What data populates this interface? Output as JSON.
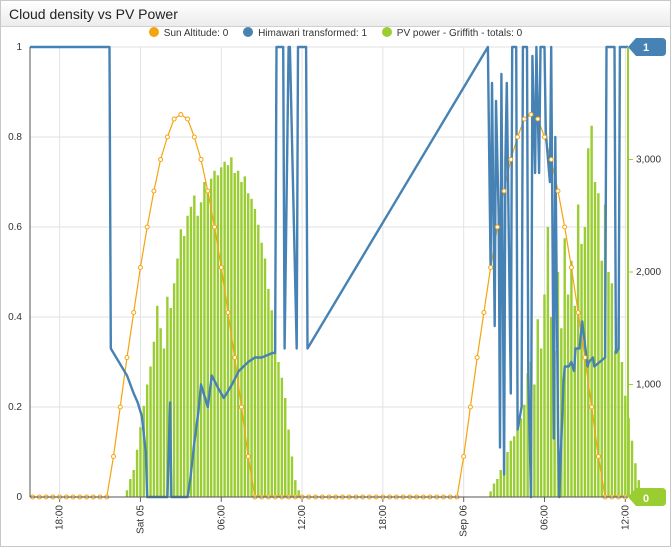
{
  "widget": {
    "title": "Cloud density vs PV Power"
  },
  "legend": [
    {
      "label": "Sun Altitude: 0",
      "color": "#f5a40f"
    },
    {
      "label": "Himawari transformed: 1",
      "color": "#4682b4"
    },
    {
      "label": "PV power - Griffith - totals: 0",
      "color": "#9acd32"
    }
  ],
  "badges": {
    "left_value": "1",
    "right_value": "0",
    "left_color": "#4682b4",
    "right_color": "#9acd32"
  },
  "chart_data": {
    "type": "line",
    "x_ticks": [
      "18:00",
      "Sat 05",
      "06:00",
      "12:00",
      "18:00",
      "Sep 06",
      "06:00",
      "12:00"
    ],
    "x_tick_hours": [
      -6,
      0,
      6,
      12,
      18,
      24,
      30,
      36
    ],
    "xlim_hours": [
      -8.2,
      36.2
    ],
    "y_left": {
      "ylim": [
        0,
        1
      ],
      "ticks": [
        "0",
        "0.2",
        "0.4",
        "0.6",
        "0.8",
        "1"
      ]
    },
    "y_right": {
      "ylim": [
        0,
        4000
      ],
      "ticks": [
        "1,000",
        "2,000",
        "3,000"
      ]
    },
    "grid": true,
    "legend_position": "top",
    "series": [
      {
        "name": "Sun Altitude",
        "type": "line-markers",
        "color": "#f5a40f",
        "axis": "left",
        "x": [
          -8.0,
          -7.5,
          -7.0,
          -6.5,
          -6.0,
          -5.5,
          -5.0,
          -4.5,
          -4.0,
          -3.5,
          -3.0,
          -2.5,
          -2.0,
          -1.5,
          -1.0,
          -0.5,
          0.0,
          0.5,
          1.0,
          1.5,
          2.0,
          2.5,
          3.0,
          3.5,
          4.0,
          4.5,
          5.0,
          5.5,
          6.0,
          6.5,
          7.0,
          7.5,
          8.0,
          8.5,
          9.0,
          9.5,
          10.0,
          10.5,
          11.0,
          11.5,
          12.0,
          12.5,
          13.0,
          13.5,
          14.0,
          14.5,
          15.0,
          15.5,
          16.0,
          16.5,
          17.0,
          17.5,
          18.0,
          18.5,
          19.0,
          19.5,
          20.0,
          20.5,
          21.0,
          21.5,
          22.0,
          22.5,
          23.0,
          23.5,
          24.0,
          24.5,
          25.0,
          25.5,
          26.0,
          26.5,
          27.0,
          27.5,
          28.0,
          28.5,
          29.0,
          29.5,
          30.0,
          30.5,
          31.0,
          31.5,
          32.0,
          32.5,
          33.0,
          33.5,
          34.0,
          34.5,
          35.0,
          35.5,
          36.0
        ],
        "values": [
          0,
          0,
          0,
          0,
          0,
          0,
          0,
          0,
          0,
          0,
          0,
          0,
          0.09,
          0.2,
          0.31,
          0.41,
          0.51,
          0.6,
          0.68,
          0.75,
          0.8,
          0.84,
          0.85,
          0.84,
          0.8,
          0.75,
          0.68,
          0.6,
          0.51,
          0.41,
          0.31,
          0.2,
          0.09,
          0,
          0,
          0,
          0,
          0,
          0,
          0,
          0,
          0,
          0,
          0,
          0,
          0,
          0,
          0,
          0,
          0,
          0,
          0,
          0,
          0,
          0,
          0,
          0,
          0,
          0,
          0,
          0,
          0,
          0,
          0,
          0.09,
          0.2,
          0.31,
          0.41,
          0.51,
          0.6,
          0.68,
          0.75,
          0.8,
          0.84,
          0.85,
          0.84,
          0.8,
          0.75,
          0.68,
          0.6,
          0.51,
          0.41,
          0.31,
          0.2,
          0.09,
          0,
          0,
          0,
          0
        ]
      },
      {
        "name": "Himawari transformed",
        "type": "line",
        "color": "#4682b4",
        "axis": "left",
        "x": [
          -8.2,
          -2.3,
          -2.2,
          -1.8,
          -1.0,
          -0.5,
          -0.2,
          0.1,
          0.4,
          0.5,
          0.6,
          1.5,
          2.0,
          2.2,
          2.3,
          2.5,
          3.2,
          3.5,
          3.7,
          4.0,
          4.3,
          4.5,
          4.8,
          5.0,
          5.3,
          5.8,
          6.2,
          6.8,
          7.3,
          8.0,
          8.5,
          9.0,
          9.8,
          10.0,
          10.1,
          10.6,
          10.7,
          11.0,
          11.1,
          11.6,
          11.7,
          12.3,
          12.4,
          25.8,
          25.9,
          26.0,
          26.1,
          26.3,
          26.4,
          26.6,
          26.7,
          26.8,
          27.0,
          27.1,
          27.2,
          27.5,
          27.6,
          27.9,
          28.0,
          28.3,
          28.4,
          28.7,
          28.8,
          29.0,
          29.1,
          29.3,
          29.4,
          29.6,
          29.7,
          30.0,
          30.1,
          30.4,
          30.5,
          30.7,
          30.8,
          31.0,
          31.1,
          31.4,
          31.5,
          31.8,
          32.0,
          32.2,
          32.3,
          32.6,
          32.8,
          33.2,
          33.3,
          33.6,
          33.7,
          34.5,
          34.6,
          35.2,
          35.3,
          35.5,
          35.6,
          36.2
        ],
        "values": [
          1,
          1,
          0.33,
          0.31,
          0.27,
          0.23,
          0.21,
          0.18,
          0.1,
          0.0,
          0.0,
          0.0,
          0.0,
          0.21,
          0.0,
          0.0,
          0.0,
          0.0,
          0.04,
          0.12,
          0.19,
          0.25,
          0.22,
          0.2,
          0.27,
          0.24,
          0.22,
          0.25,
          0.28,
          0.3,
          0.31,
          0.31,
          0.32,
          0.32,
          1.0,
          1.0,
          0.33,
          1.0,
          1.0,
          0.33,
          1.0,
          1.0,
          0.33,
          1.0,
          0.74,
          0.51,
          0.92,
          0.38,
          0.88,
          0.62,
          0.11,
          0.94,
          0.05,
          0.75,
          0.92,
          0.23,
          1.0,
          1.0,
          0.15,
          0.2,
          1.0,
          1.0,
          0.27,
          0.0,
          0.98,
          0.72,
          1.0,
          0.72,
          1.0,
          1.0,
          0.81,
          0.7,
          1.0,
          0.13,
          0.8,
          0.16,
          0.0,
          0.25,
          0.29,
          0.29,
          0.3,
          0.28,
          0.33,
          0.33,
          0.39,
          0.29,
          0.3,
          0.31,
          0.29,
          0.31,
          1.0,
          1.0,
          0.32,
          0.33,
          1.0,
          1.0
        ]
      },
      {
        "name": "PV power - Griffith",
        "type": "bar",
        "color": "#9acd32",
        "axis": "right",
        "bar_step_hours": 0.25,
        "days": [
          {
            "start_hour": -1.0,
            "values": [
              60,
              160,
              240,
              420,
              620,
              810,
              1000,
              1160,
              1380,
              1700,
              1500,
              1320,
              1780,
              1680,
              1900,
              2120,
              2380,
              2320,
              2500,
              2580,
              2680,
              2500,
              2620,
              2800,
              2740,
              2830,
              2900,
              2860,
              2930,
              2980,
              2950,
              3020,
              2880,
              2900,
              2800,
              2850,
              2700,
              2650,
              2560,
              2420,
              2260,
              2120,
              1850,
              1660,
              1470,
              1200,
              1060,
              880,
              600,
              360,
              150,
              60
            ]
          },
          {
            "start_hour": 26.0,
            "values": [
              50,
              120,
              160,
              240,
              330,
              400,
              500,
              540,
              600,
              700,
              820,
              1100,
              1200,
              1000,
              1580,
              1320,
              1800,
              2400,
              1600,
              1300,
              2000,
              1500,
              2300,
              1800,
              2100,
              1700,
              2600,
              2250,
              2400,
              3100,
              3300,
              2800,
              2700,
              2100,
              2600,
              2000,
              1900,
              1300,
              1600,
              1200,
              900,
              700,
              500,
              300,
              150,
              60
            ]
          }
        ]
      }
    ]
  }
}
